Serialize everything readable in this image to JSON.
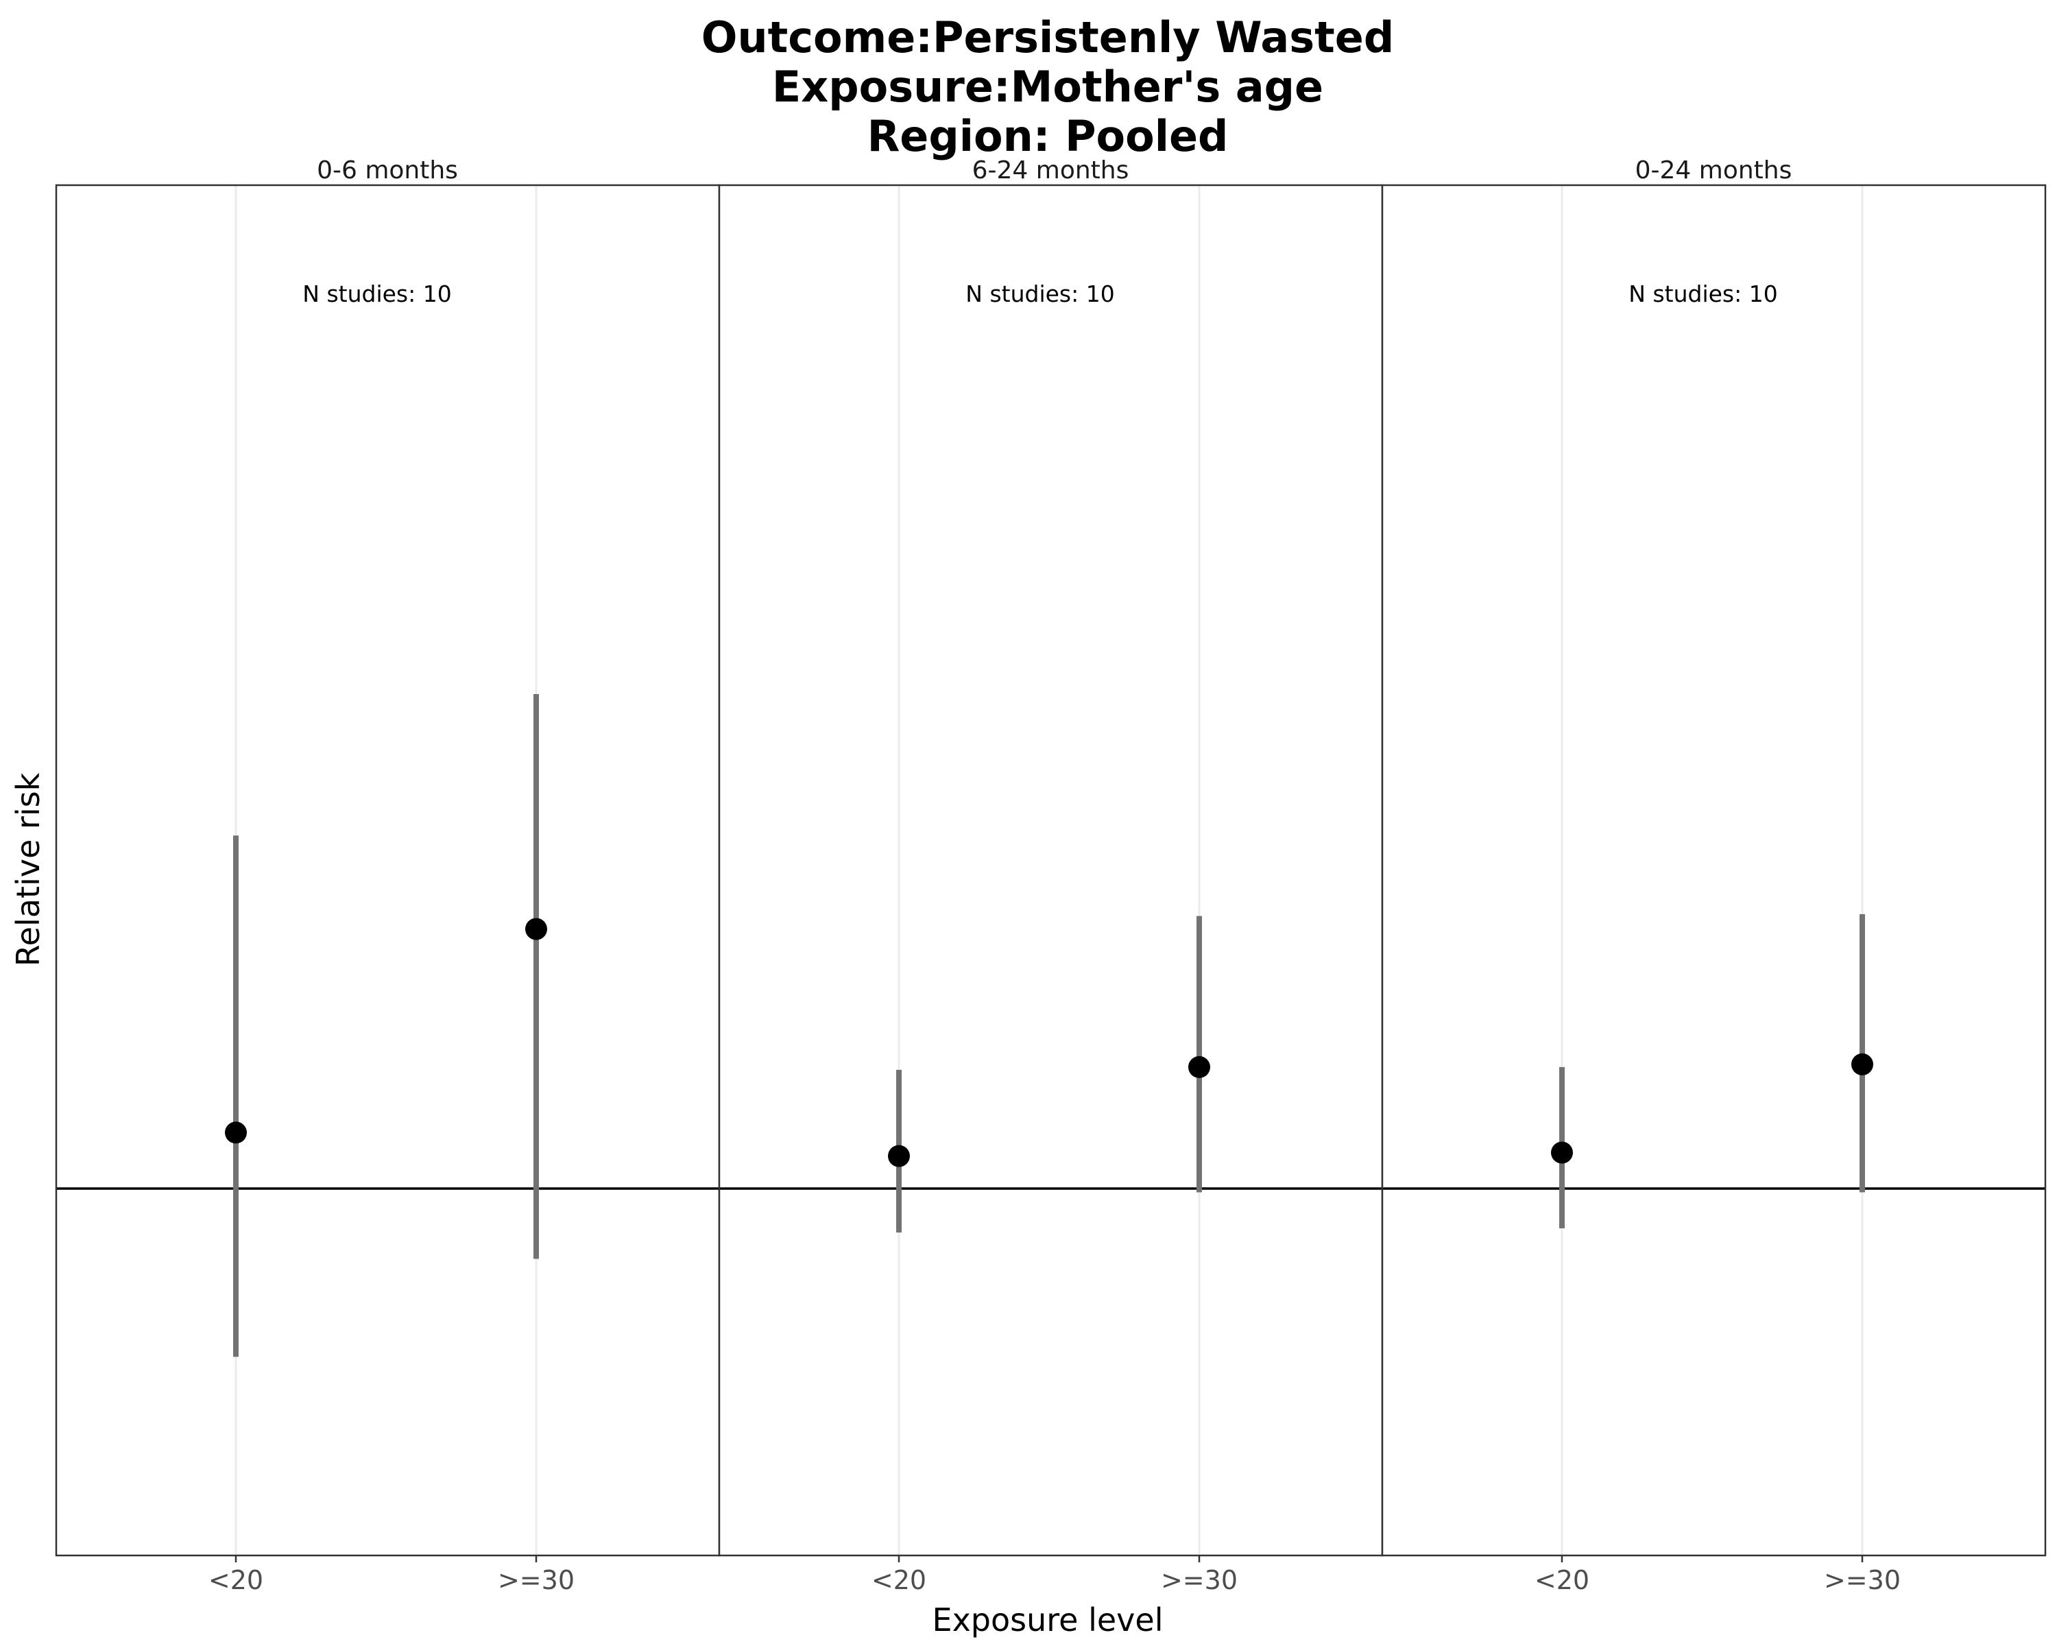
{
  "chart_data": {
    "type": "scatter",
    "title_lines": [
      "Outcome:Persistenly Wasted",
      "Exposure:Mother's age",
      "Region: Pooled"
    ],
    "xlabel": "Exposure level",
    "ylabel": "Relative risk",
    "y_scale": "log",
    "ylim": [
      0.8,
      3.9
    ],
    "reference_line": 1,
    "grid": "vertical-only",
    "categories": [
      "<20",
      ">=30"
    ],
    "panels": [
      {
        "label": "0-6 months",
        "annotation": "N studies: 10",
        "points": [
          {
            "x": "<20",
            "rr": 1.16,
            "lower": 0.64,
            "upper": 2.55
          },
          {
            "x": ">=30",
            "rr": 1.99,
            "lower": 0.83,
            "upper": 3.71
          }
        ]
      },
      {
        "label": "6-24 months",
        "annotation": "N studies: 10",
        "points": [
          {
            "x": "<20",
            "rr": 1.09,
            "lower": 0.89,
            "upper": 1.37
          },
          {
            "x": ">=30",
            "rr": 1.38,
            "lower": 0.99,
            "upper": 2.06
          }
        ]
      },
      {
        "label": "0-24 months",
        "annotation": "N studies: 10",
        "points": [
          {
            "x": "<20",
            "rr": 1.1,
            "lower": 0.9,
            "upper": 1.38
          },
          {
            "x": ">=30",
            "rr": 1.39,
            "lower": 0.99,
            "upper": 2.07
          }
        ]
      }
    ]
  }
}
